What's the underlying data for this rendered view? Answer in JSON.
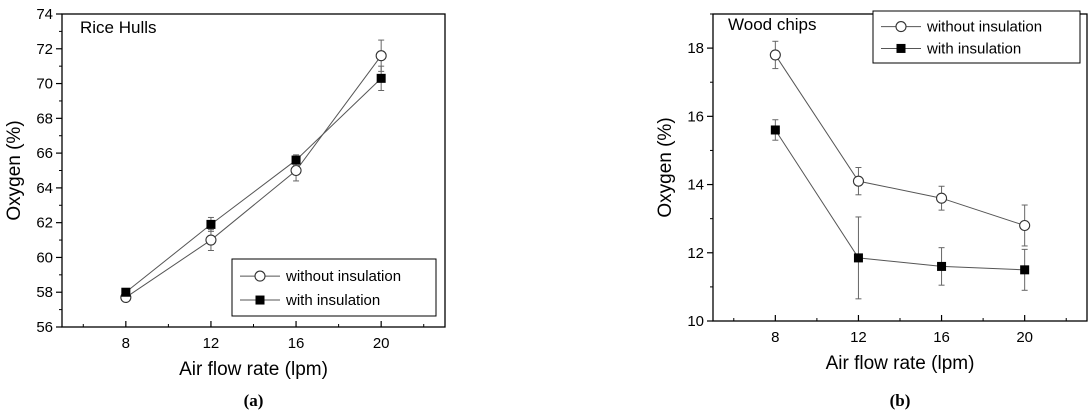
{
  "chart_data": [
    {
      "type": "line",
      "panel_caption": "(a)",
      "title": "Rice Hulls",
      "xlabel": "Air flow rate (lpm)",
      "ylabel": "Oxygen (%)",
      "xlim": [
        5,
        23
      ],
      "ylim": [
        56,
        74
      ],
      "xticks": [
        "8",
        "12",
        "16",
        "20"
      ],
      "yticks": [
        "56",
        "58",
        "60",
        "62",
        "64",
        "66",
        "68",
        "70",
        "72",
        "74"
      ],
      "legend_position": "lower-right",
      "x": [
        8,
        12,
        16,
        20
      ],
      "series": [
        {
          "name": "without insulation",
          "marker": "open-circle",
          "values": [
            57.7,
            61.0,
            65.0,
            71.6
          ],
          "errors": [
            0.2,
            0.6,
            0.6,
            0.9
          ]
        },
        {
          "name": "with insulation",
          "marker": "filled-square",
          "values": [
            58.0,
            61.9,
            65.6,
            70.3
          ],
          "errors": [
            0.2,
            0.4,
            0.3,
            0.7
          ]
        }
      ]
    },
    {
      "type": "line",
      "panel_caption": "(b)",
      "title": "Wood chips",
      "xlabel": "Air flow rate (lpm)",
      "ylabel": "Oxygen (%)",
      "xlim": [
        5,
        23
      ],
      "ylim": [
        10,
        19
      ],
      "xticks": [
        "8",
        "12",
        "16",
        "20"
      ],
      "yticks": [
        "10",
        "12",
        "14",
        "16",
        "18"
      ],
      "legend_position": "top-right",
      "x": [
        8,
        12,
        16,
        20
      ],
      "series": [
        {
          "name": "without insulation",
          "marker": "open-circle",
          "values": [
            17.8,
            14.1,
            13.6,
            12.8
          ],
          "errors": [
            0.4,
            0.4,
            0.35,
            0.6
          ]
        },
        {
          "name": "with insulation",
          "marker": "filled-square",
          "values": [
            15.6,
            11.85,
            11.6,
            11.5
          ],
          "errors": [
            0.3,
            1.2,
            0.55,
            0.6
          ]
        }
      ]
    }
  ]
}
